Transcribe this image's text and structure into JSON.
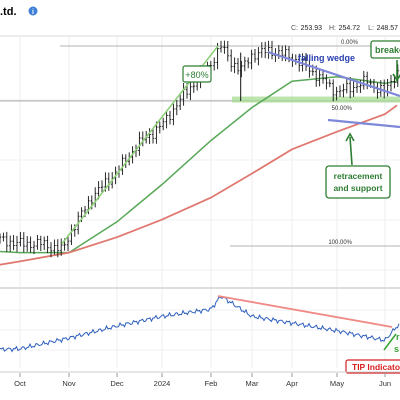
{
  "header": {
    "title_fragment": ".td.",
    "info_icon": "info-circle-icon",
    "price_stats": [
      {
        "label": "L:",
        "value": "248.57"
      },
      {
        "label": "H:",
        "value": "254.72"
      },
      {
        "label": "C:",
        "value": "253.93"
      }
    ]
  },
  "chart_data": [
    {
      "type": "line",
      "panel": "price",
      "series": [
        {
          "name": "",
          "style": "ohlc-bars",
          "color": "#000000",
          "x": [
            "Sep 01",
            "Sep 15",
            "Oct 01",
            "Oct 15",
            "Oct 28",
            "Nov 01",
            "Nov 15",
            "Dec 01",
            "Dec 15",
            "Jan 01",
            "Jan 15",
            "Feb 01",
            "Feb 08",
            "Feb 15",
            "Feb 22",
            "Mar 01",
            "Mar 15",
            "Apr 01",
            "Apr 15",
            "May 01",
            "May 10",
            "May 20",
            "Jun 01",
            "Jun 10"
          ],
          "values": [
            168,
            165,
            163,
            163,
            160,
            167,
            184,
            196,
            208,
            217,
            231,
            245,
            253,
            246,
            242,
            249,
            251,
            248,
            241,
            232,
            234,
            237,
            232,
            241
          ]
        },
        {
          "name": "",
          "style": "moving-average-medium",
          "color": "#58a858",
          "x": [
            "Sep 01",
            "Oct 01",
            "Nov 01",
            "Dec 01",
            "Jan 01",
            "Feb 01",
            "Mar 01",
            "Apr 01",
            "May 01",
            "Jun 01",
            "Jun 10"
          ],
          "values": [
            160,
            159,
            159,
            173,
            190,
            210,
            225,
            237,
            239,
            236,
            237
          ]
        },
        {
          "name": "",
          "style": "moving-average-long",
          "color": "#e07870",
          "x": [
            "Sep 01",
            "Oct 01",
            "Nov 01",
            "Dec 01",
            "Jan 01",
            "Feb 01",
            "Mar 01",
            "Apr 01",
            "May 01",
            "Jun 01",
            "Jun 10"
          ],
          "values": [
            152,
            155,
            159,
            166,
            174,
            184,
            195,
            206,
            214,
            222,
            226
          ]
        }
      ],
      "fib_levels": [
        {
          "label": "0.00%",
          "value": 253
        },
        {
          "label": "50.00%",
          "value": 228
        },
        {
          "label": "100.00%",
          "value": 162
        }
      ],
      "annotations": [
        {
          "text": "+80%",
          "kind": "box",
          "color": "#2e7d32"
        },
        {
          "text": "falling wedge",
          "kind": "text",
          "color": "#2a3fb0"
        },
        {
          "text": "breakout",
          "kind": "box",
          "color": "#2e7d32"
        },
        {
          "text": "retracement and support",
          "kind": "box",
          "color": "#2e7d32"
        }
      ],
      "grid": true
    },
    {
      "type": "line",
      "panel": "indicator",
      "series": [
        {
          "name": "",
          "color": "#2f5fbf",
          "x": [
            "Sep 01",
            "Oct 01",
            "Nov 01",
            "Dec 01",
            "Jan 01",
            "Feb 01",
            "Feb 08",
            "Mar 01",
            "Apr 01",
            "May 01",
            "Jun 01",
            "Jun 10"
          ],
          "values": [
            0.1,
            0.12,
            0.3,
            0.5,
            0.66,
            0.78,
            1.0,
            0.66,
            0.55,
            0.42,
            0.26,
            0.5
          ]
        }
      ],
      "annotations": [
        {
          "text": "TIP Indicators",
          "kind": "box",
          "color": "#d62020"
        }
      ],
      "grid": true
    }
  ],
  "xaxis": {
    "ticks": [
      {
        "label": "Oct"
      },
      {
        "label": "Nov"
      },
      {
        "label": "Dec"
      },
      {
        "label": "2024"
      },
      {
        "label": "Feb"
      },
      {
        "label": "Mar"
      },
      {
        "label": "Apr"
      },
      {
        "label": "May"
      },
      {
        "label": "Jun"
      }
    ]
  }
}
